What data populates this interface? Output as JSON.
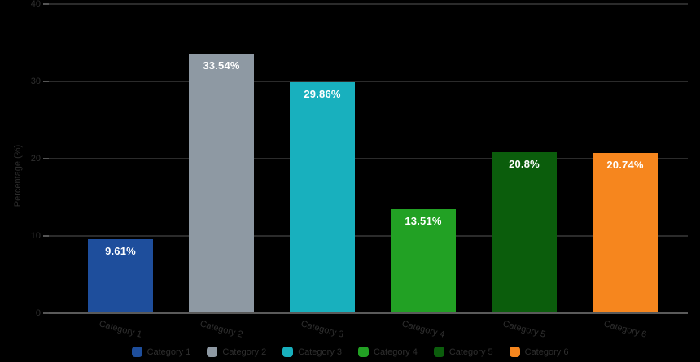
{
  "chart_data": {
    "type": "bar",
    "title": "",
    "categories": [
      "Category 1",
      "Category 2",
      "Category 3",
      "Category 4",
      "Category 5",
      "Category 6"
    ],
    "values": [
      9.61,
      33.54,
      29.86,
      13.51,
      20.8,
      20.74
    ],
    "value_labels": [
      "9.61%",
      "33.54%",
      "29.86%",
      "13.51%",
      "20.8%",
      "20.74%"
    ],
    "bar_colors": [
      "#1e4e9c",
      "#8e99a3",
      "#18b0be",
      "#22a124",
      "#0b5d0c",
      "#f6861e"
    ],
    "xlabel": "",
    "ylabel": "Percentage (%)",
    "ylim": [
      0,
      40
    ],
    "yticks": [
      0,
      10,
      20,
      30,
      40
    ],
    "grid": true,
    "legend_position": "bottom",
    "legend": [
      {
        "label": "Category 1",
        "color": "#1e4e9c"
      },
      {
        "label": "Category 2",
        "color": "#8e99a3"
      },
      {
        "label": "Category 3",
        "color": "#18b0be"
      },
      {
        "label": "Category 4",
        "color": "#22a124"
      },
      {
        "label": "Category 5",
        "color": "#0b5d0c"
      },
      {
        "label": "Category 6",
        "color": "#f6861e"
      }
    ]
  },
  "colors": {
    "background": "#000000",
    "gridline": "#2b2b2b",
    "axis_line": "#5a5a5a",
    "muted_text": "#2e2e2e",
    "value_label_text": "#ffffff"
  }
}
